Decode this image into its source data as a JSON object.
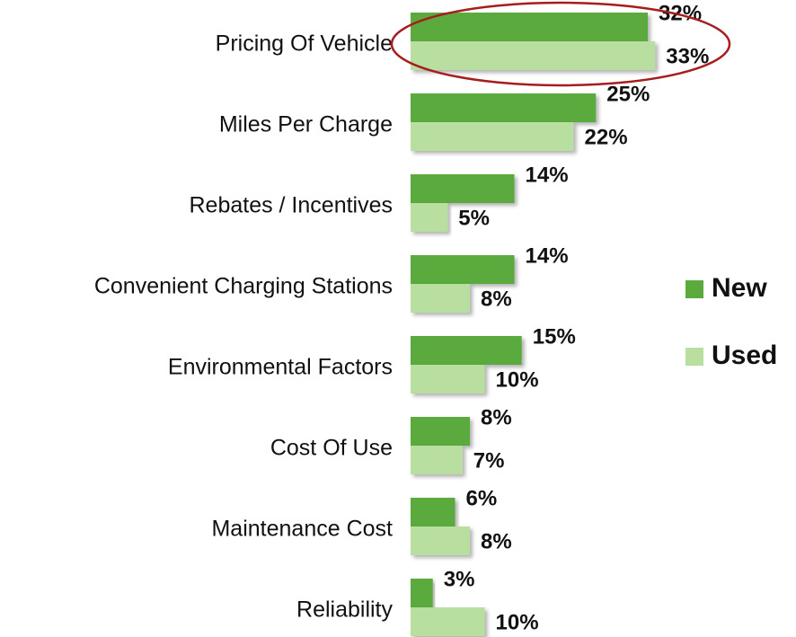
{
  "chart_data": {
    "type": "bar",
    "orientation": "horizontal",
    "categories": [
      "Pricing Of Vehicle",
      "Miles Per Charge",
      "Rebates / Incentives",
      "Convenient Charging Stations",
      "Environmental Factors",
      "Cost Of Use",
      "Maintenance Cost",
      "Reliability"
    ],
    "series": [
      {
        "name": "New",
        "color": "#5aaa3c",
        "values": [
          32,
          25,
          14,
          14,
          15,
          8,
          6,
          3
        ],
        "value_labels": [
          "32%",
          "25%",
          "14%",
          "14%",
          "15%",
          "8%",
          "6%",
          "3%"
        ]
      },
      {
        "name": "Used",
        "color": "#b8dea0",
        "values": [
          33,
          22,
          5,
          8,
          10,
          7,
          8,
          10
        ],
        "value_labels": [
          "33%",
          "22%",
          "5%",
          "8%",
          "10%",
          "7%",
          "8%",
          "10%"
        ]
      }
    ],
    "legend": "right"
  }
}
